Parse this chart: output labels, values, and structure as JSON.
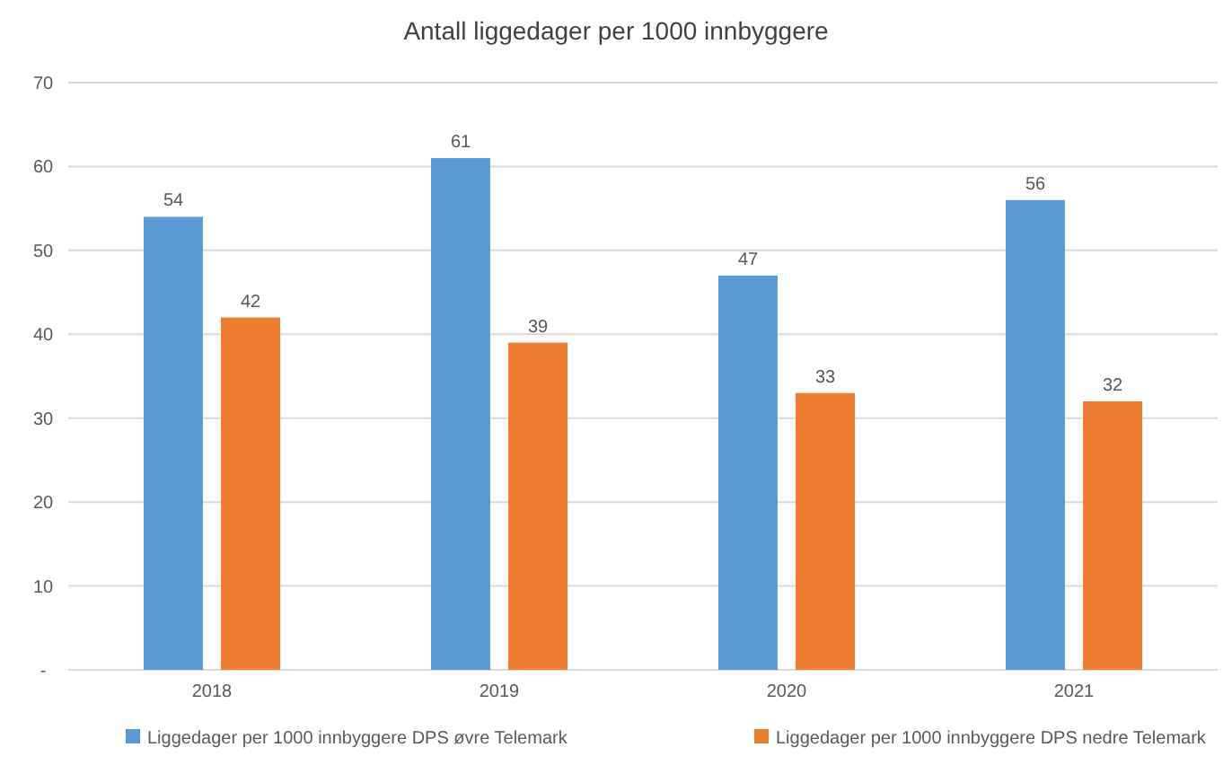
{
  "chart_data": {
    "type": "bar",
    "title": "Antall liggedager per 1000 innbyggere",
    "categories": [
      "2018",
      "2019",
      "2020",
      "2021"
    ],
    "series": [
      {
        "name": "Liggedager per 1000 innbyggere DPS øvre Telemark",
        "color": "#5b9bd5",
        "values": [
          54,
          61,
          47,
          56
        ]
      },
      {
        "name": "Liggedager per 1000 innbyggere DPS nedre Telemark",
        "color": "#ed7d31",
        "values": [
          42,
          39,
          33,
          32
        ]
      }
    ],
    "ylim": [
      0,
      70
    ],
    "yticks": [
      {
        "value": 0,
        "label": "-"
      },
      10,
      20,
      30,
      40,
      50,
      60,
      70
    ],
    "grid": "y",
    "legend": "bottom",
    "data_labels": true
  }
}
